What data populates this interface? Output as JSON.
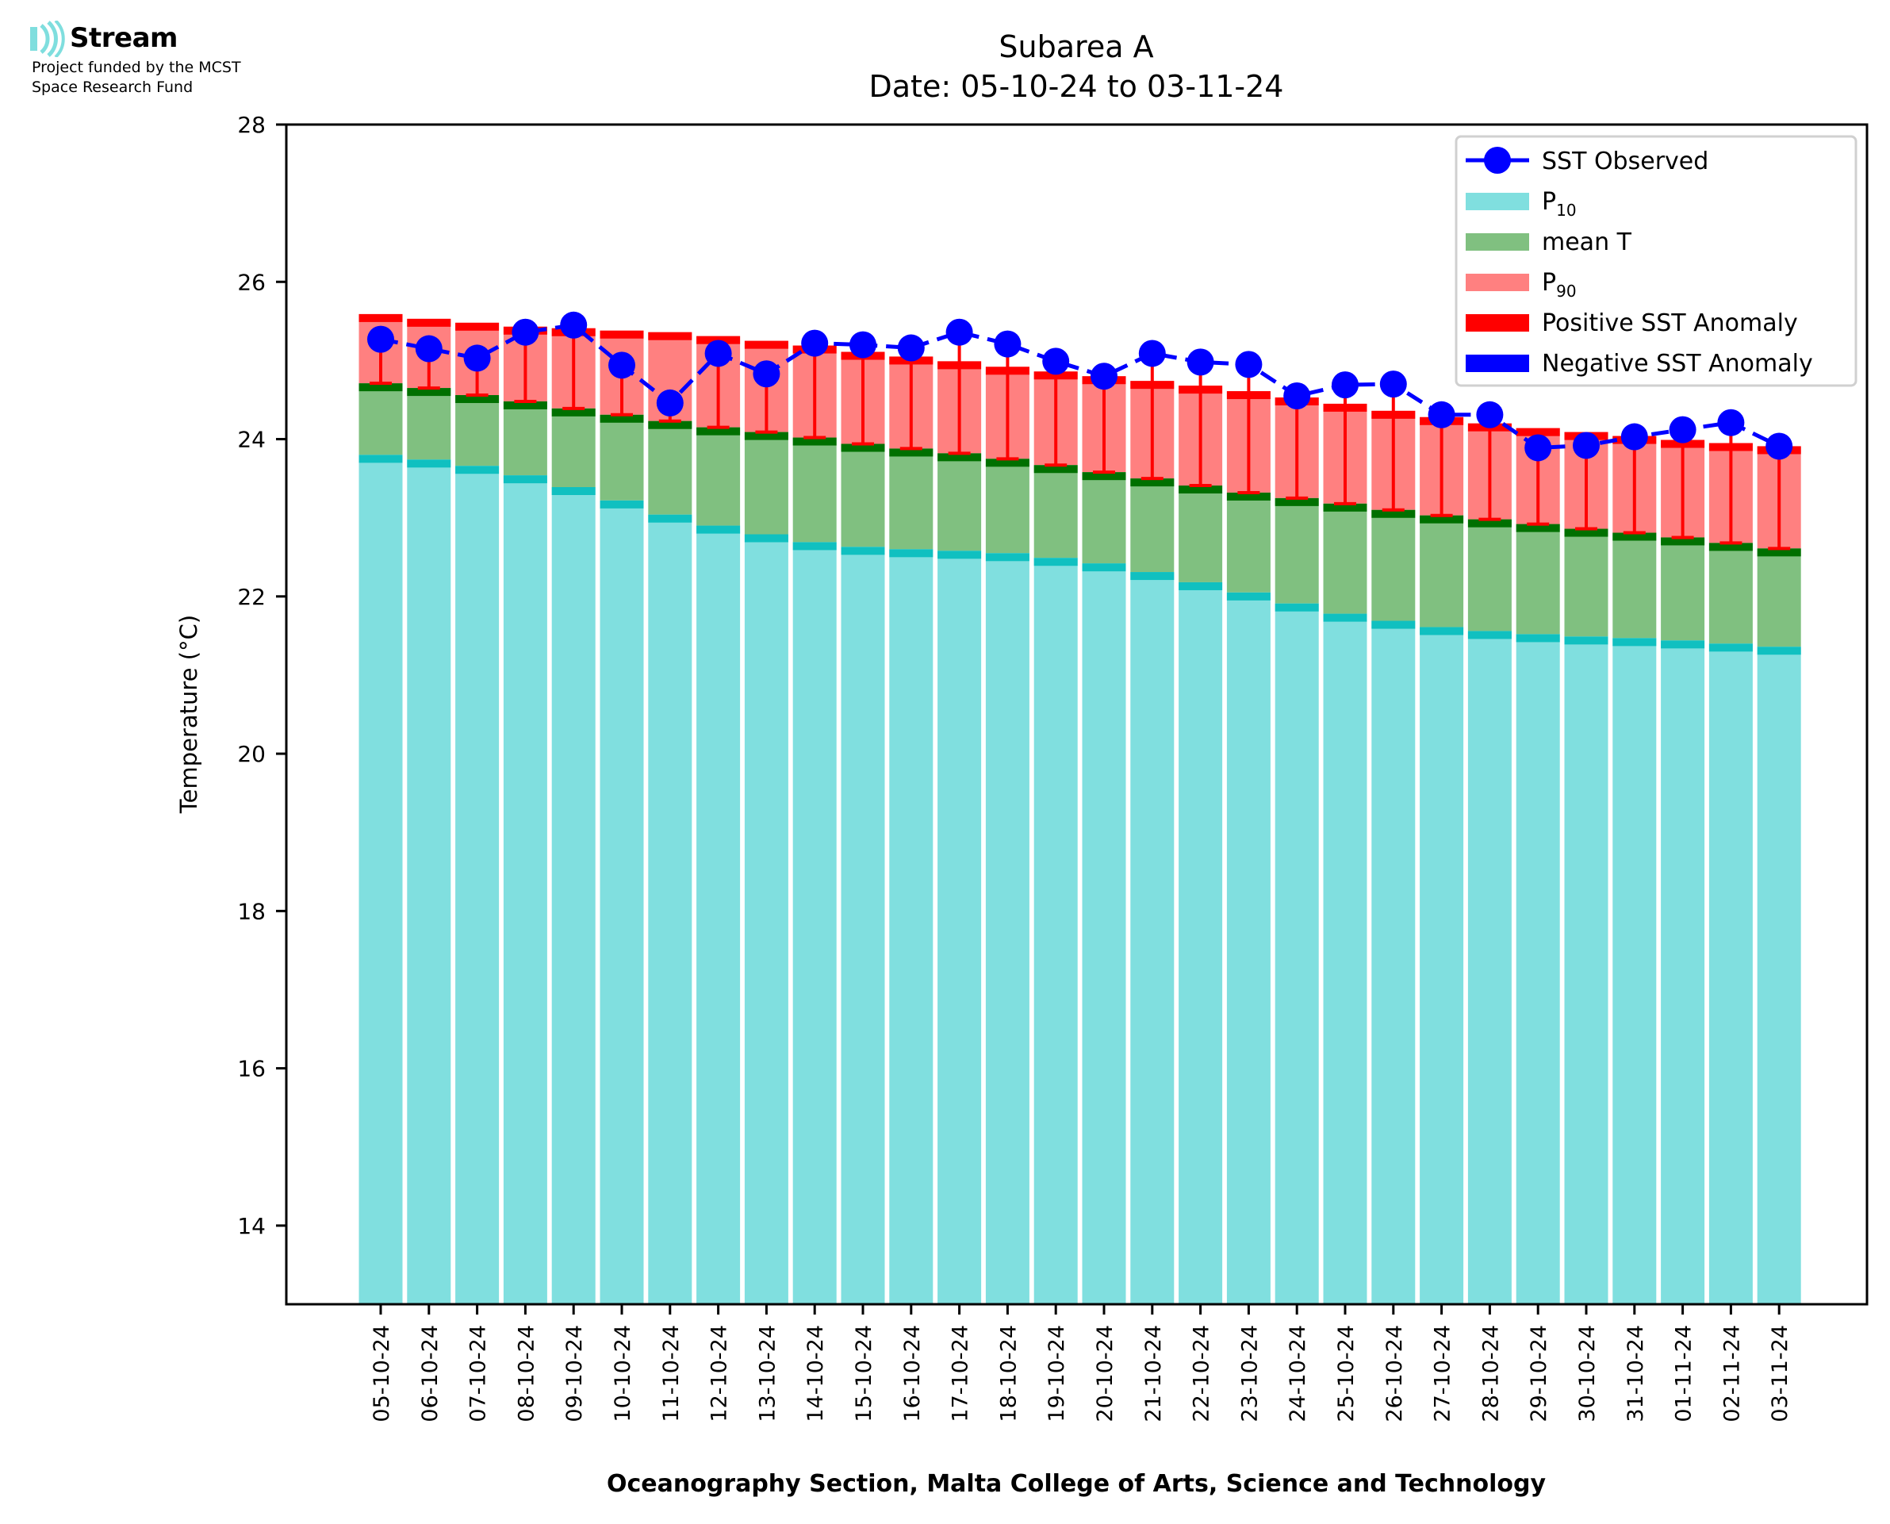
{
  "logo": {
    "name": "Stream",
    "line1": "Project funded by the MCST",
    "line2": "Space Research Fund",
    "accent": "#7fdede"
  },
  "chart_data": {
    "type": "bar",
    "title": "Subarea A",
    "subtitle": "Date: 05-10-24 to 03-11-24",
    "xlabel": "Oceanography Section, Malta College of Arts, Science and Technology",
    "ylabel": "Temperature (°C)",
    "ylim": [
      13,
      28
    ],
    "yticks": [
      14,
      16,
      18,
      20,
      22,
      24,
      26,
      28
    ],
    "grid": false,
    "legend_position": "top-right",
    "colors": {
      "p10": "#80dfdf",
      "p10_edge": "#10c0c0",
      "mean": "#80c080",
      "mean_edge": "#007000",
      "p90": "#ff8080",
      "p90_edge": "#ff0000",
      "observed": "#0000ff",
      "positive_anomaly": "#ff0000",
      "negative_anomaly": "#0000ff"
    },
    "legend": [
      {
        "key": "observed",
        "label": "SST Observed",
        "sub": ""
      },
      {
        "key": "p10",
        "label": "P",
        "sub": "10"
      },
      {
        "key": "mean",
        "label": "mean T",
        "sub": ""
      },
      {
        "key": "p90",
        "label": "P",
        "sub": "90"
      },
      {
        "key": "positive_anomaly",
        "label": "Positive SST Anomaly",
        "sub": ""
      },
      {
        "key": "negative_anomaly",
        "label": "Negative SST Anomaly",
        "sub": ""
      }
    ],
    "categories": [
      "05-10-24",
      "06-10-24",
      "07-10-24",
      "08-10-24",
      "09-10-24",
      "10-10-24",
      "11-10-24",
      "12-10-24",
      "13-10-24",
      "14-10-24",
      "15-10-24",
      "16-10-24",
      "17-10-24",
      "18-10-24",
      "19-10-24",
      "20-10-24",
      "21-10-24",
      "22-10-24",
      "23-10-24",
      "24-10-24",
      "25-10-24",
      "26-10-24",
      "27-10-24",
      "28-10-24",
      "29-10-24",
      "30-10-24",
      "31-10-24",
      "01-11-24",
      "02-11-24",
      "03-11-24"
    ],
    "series": [
      {
        "name": "P10",
        "key": "p10",
        "values": [
          23.8,
          23.74,
          23.66,
          23.54,
          23.39,
          23.22,
          23.04,
          22.9,
          22.79,
          22.69,
          22.63,
          22.6,
          22.58,
          22.55,
          22.49,
          22.42,
          22.31,
          22.18,
          22.05,
          21.91,
          21.78,
          21.69,
          21.61,
          21.56,
          21.52,
          21.49,
          21.47,
          21.44,
          21.4,
          21.36
        ]
      },
      {
        "name": "mean T",
        "key": "mean",
        "values": [
          24.71,
          24.65,
          24.56,
          24.48,
          24.39,
          24.31,
          24.23,
          24.15,
          24.09,
          24.02,
          23.94,
          23.88,
          23.82,
          23.75,
          23.67,
          23.58,
          23.5,
          23.41,
          23.32,
          23.25,
          23.18,
          23.1,
          23.03,
          22.98,
          22.92,
          22.86,
          22.81,
          22.75,
          22.68,
          22.61
        ]
      },
      {
        "name": "P90",
        "key": "p90",
        "values": [
          25.59,
          25.53,
          25.48,
          25.43,
          25.41,
          25.38,
          25.36,
          25.31,
          25.25,
          25.19,
          25.11,
          25.05,
          24.99,
          24.92,
          24.86,
          24.8,
          24.74,
          24.68,
          24.61,
          24.53,
          24.45,
          24.36,
          24.28,
          24.2,
          24.14,
          24.09,
          24.04,
          23.99,
          23.95,
          23.91
        ]
      },
      {
        "name": "SST Observed",
        "key": "observed",
        "values": [
          25.27,
          25.15,
          25.03,
          25.36,
          25.45,
          24.94,
          24.46,
          25.09,
          24.83,
          25.22,
          25.2,
          25.16,
          25.36,
          25.21,
          24.99,
          24.8,
          25.09,
          24.98,
          24.95,
          24.55,
          24.69,
          24.7,
          24.31,
          24.31,
          23.89,
          23.92,
          24.03,
          24.12,
          24.21,
          23.91
        ]
      }
    ]
  }
}
